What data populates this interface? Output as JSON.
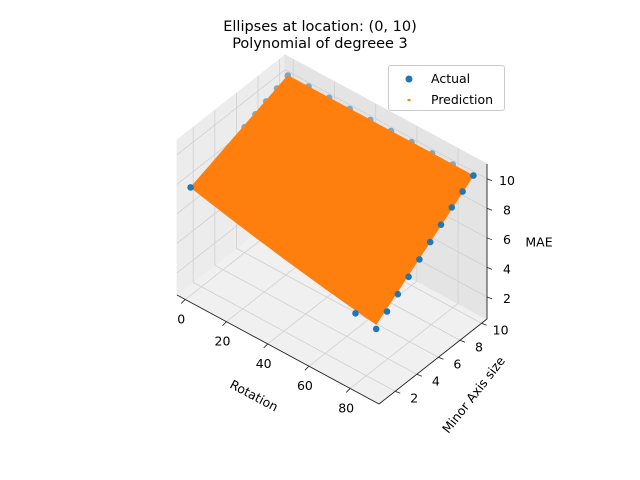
{
  "title": {
    "line1": "Ellipses at location: (0, 10)",
    "line2": "Polynomial of degreee 3"
  },
  "legend": {
    "actual_label": "Actual",
    "prediction_label": "Prediction"
  },
  "colors": {
    "actual": "#1f77b4",
    "prediction": "#ff7f0e",
    "pane_left": "#ececec",
    "pane_right": "#e4e4e4",
    "pane_floor": "#f0f0f0",
    "grid": "#d0d0d0"
  },
  "chart_data": {
    "type": "scatter3d",
    "title": "Ellipses at location: (0, 10)\nPolynomial of degreee 3",
    "xlabel": "Rotation",
    "ylabel": "Minor Axis size",
    "zlabel": "MAE",
    "xlim": [
      -4,
      94
    ],
    "ylim": [
      0.5,
      10.5
    ],
    "zlim": [
      0.5,
      11
    ],
    "x_ticks": [
      0,
      20,
      40,
      60,
      80
    ],
    "y_ticks": [
      2,
      4,
      6,
      8,
      10
    ],
    "z_ticks": [
      2,
      4,
      6,
      8,
      10
    ],
    "grid": true,
    "legend_position": "top-right",
    "series": [
      {
        "name": "Actual",
        "style": "markers",
        "points": [
          {
            "x": 0,
            "y": 1,
            "z": 7.8
          },
          {
            "x": 90,
            "y": 1,
            "z": 5.0
          },
          {
            "x": 80,
            "y": 1,
            "z": 5.3
          },
          {
            "x": 90,
            "y": 2,
            "z": 5.6
          },
          {
            "x": 90,
            "y": 3,
            "z": 6.2
          },
          {
            "x": 90,
            "y": 4,
            "z": 6.8
          },
          {
            "x": 90,
            "y": 5,
            "z": 7.4
          },
          {
            "x": 90,
            "y": 6,
            "z": 8.0
          },
          {
            "x": 90,
            "y": 7,
            "z": 8.6
          },
          {
            "x": 90,
            "y": 8,
            "z": 9.2
          },
          {
            "x": 90,
            "y": 9,
            "z": 9.7
          },
          {
            "x": 90,
            "y": 10,
            "z": 10.2
          },
          {
            "x": 0,
            "y": 10,
            "z": 10.2
          },
          {
            "x": 10,
            "y": 10,
            "z": 10.2
          },
          {
            "x": 20,
            "y": 10,
            "z": 10.2
          },
          {
            "x": 30,
            "y": 10,
            "z": 10.2
          },
          {
            "x": 40,
            "y": 10,
            "z": 10.2
          },
          {
            "x": 50,
            "y": 10,
            "z": 10.2
          },
          {
            "x": 60,
            "y": 10,
            "z": 10.2
          },
          {
            "x": 70,
            "y": 10,
            "z": 10.2
          },
          {
            "x": 80,
            "y": 10,
            "z": 10.2
          },
          {
            "x": 0,
            "y": 9,
            "z": 9.9
          },
          {
            "x": 0,
            "y": 8,
            "z": 9.6
          },
          {
            "x": 0,
            "y": 7,
            "z": 9.3
          },
          {
            "x": 0,
            "y": 6,
            "z": 9.0
          }
        ]
      },
      {
        "name": "Prediction",
        "style": "surface",
        "surface_note": "polynomial fit over Rotation 0..90 and Minor Axis size 1..10",
        "corner_values": {
          "x0_y1": 7.8,
          "x90_y1": 5.3,
          "x0_y10": 10.2,
          "x90_y10": 10.2
        }
      }
    ]
  }
}
